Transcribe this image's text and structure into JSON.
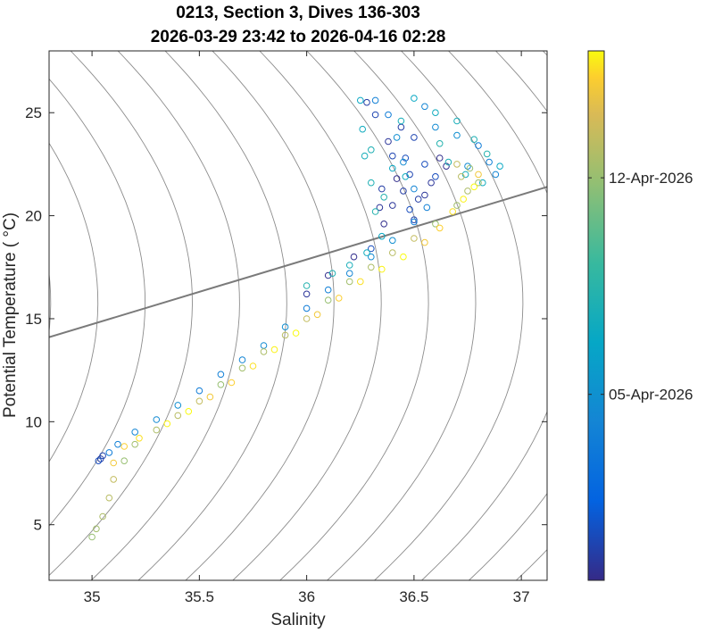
{
  "chart_data": {
    "type": "scatter",
    "title": "0213, Section 3, Dives 136-303",
    "subtitle": "2026-03-29 23:42 to 2026-04-16 02:28",
    "xlabel": "Salinity",
    "ylabel": "Potential Temperature ( °C)",
    "xlim": [
      34.8,
      37.12
    ],
    "ylim": [
      2.3,
      28.0
    ],
    "x_ticks": [
      35,
      35.5,
      36,
      36.5,
      37
    ],
    "x_tick_labels": [
      "35",
      "35.5",
      "36",
      "36.5",
      "37"
    ],
    "y_ticks": [
      5,
      10,
      15,
      20,
      25
    ],
    "y_tick_labels": [
      "5",
      "10",
      "15",
      "20",
      "25"
    ],
    "grid": false,
    "marker": "open-circle",
    "colormap": "parula",
    "color_variable": "time",
    "colorbar": {
      "range": [
        "2026-03-29 23:42",
        "2026-04-16 02:28"
      ],
      "tick_labels": [
        "05-Apr-2026",
        "12-Apr-2026"
      ],
      "tick_values": [
        "2026-04-05",
        "2026-04-12"
      ]
    },
    "density_contours": {
      "color": "#8c8c8c",
      "highlight": {
        "color": "#7a7a7a",
        "from": [
          34.8,
          14.1
        ],
        "to": [
          37.12,
          21.4
        ]
      }
    },
    "series": [
      {
        "phase": 0.05,
        "points": [
          [
            36.36,
            19.6
          ],
          [
            36.4,
            20.5
          ],
          [
            36.45,
            21.2
          ],
          [
            36.48,
            22.0
          ],
          [
            36.55,
            22.5
          ],
          [
            36.62,
            22.8
          ],
          [
            36.58,
            21.6
          ],
          [
            36.52,
            20.8
          ],
          [
            36.5,
            19.8
          ],
          [
            36.3,
            18.4
          ],
          [
            36.22,
            18.0
          ],
          [
            36.38,
            23.6
          ],
          [
            36.44,
            24.3
          ],
          [
            36.5,
            23.8
          ],
          [
            36.46,
            22.8
          ],
          [
            36.42,
            21.8
          ],
          [
            36.34,
            20.4
          ],
          [
            36.28,
            25.5
          ],
          [
            36.32,
            24.9
          ],
          [
            36.6,
            21.9
          ],
          [
            36.65,
            22.4
          ],
          [
            36.55,
            21.0
          ],
          [
            36.35,
            21.3
          ],
          [
            36.4,
            22.9
          ],
          [
            36.48,
            20.3
          ],
          [
            36.1,
            17.1
          ],
          [
            36.0,
            16.2
          ],
          [
            35.04,
            8.2
          ],
          [
            35.05,
            8.35
          ],
          [
            35.03,
            8.1
          ]
        ]
      },
      {
        "phase": 0.3,
        "points": [
          [
            35.08,
            8.5
          ],
          [
            35.12,
            8.9
          ],
          [
            35.2,
            9.5
          ],
          [
            35.3,
            10.1
          ],
          [
            35.4,
            10.8
          ],
          [
            35.5,
            11.5
          ],
          [
            35.6,
            12.3
          ],
          [
            35.7,
            13.0
          ],
          [
            35.8,
            13.7
          ],
          [
            35.9,
            14.6
          ],
          [
            36.0,
            15.5
          ],
          [
            36.1,
            16.4
          ],
          [
            36.2,
            17.2
          ],
          [
            36.3,
            18.0
          ],
          [
            36.4,
            18.8
          ],
          [
            36.5,
            19.7
          ],
          [
            36.56,
            20.4
          ],
          [
            36.5,
            21.3
          ],
          [
            36.45,
            22.6
          ],
          [
            36.42,
            23.8
          ],
          [
            36.38,
            24.9
          ],
          [
            36.32,
            25.6
          ],
          [
            36.55,
            25.3
          ],
          [
            36.6,
            24.3
          ],
          [
            36.7,
            23.9
          ],
          [
            36.8,
            23.4
          ],
          [
            36.85,
            22.6
          ],
          [
            36.88,
            22.0
          ],
          [
            36.75,
            22.4
          ]
        ]
      },
      {
        "phase": 0.5,
        "points": [
          [
            36.25,
            25.6
          ],
          [
            36.26,
            24.2
          ],
          [
            36.27,
            22.9
          ],
          [
            36.3,
            21.6
          ],
          [
            36.32,
            20.2
          ],
          [
            36.35,
            19.0
          ],
          [
            36.28,
            18.2
          ],
          [
            36.2,
            17.6
          ],
          [
            36.12,
            17.2
          ],
          [
            36.0,
            16.6
          ],
          [
            36.4,
            22.3
          ],
          [
            36.46,
            21.9
          ],
          [
            36.44,
            24.6
          ],
          [
            36.3,
            23.2
          ],
          [
            36.36,
            20.9
          ],
          [
            36.5,
            25.7
          ],
          [
            36.6,
            25.0
          ],
          [
            36.7,
            24.6
          ],
          [
            36.78,
            23.7
          ],
          [
            36.84,
            23.0
          ],
          [
            36.9,
            22.4
          ],
          [
            36.82,
            21.6
          ],
          [
            36.74,
            22.0
          ],
          [
            36.66,
            22.6
          ],
          [
            36.62,
            23.5
          ]
        ]
      },
      {
        "phase": 0.8,
        "points": [
          [
            35.0,
            4.4
          ],
          [
            35.02,
            4.8
          ],
          [
            35.05,
            5.4
          ],
          [
            35.08,
            6.3
          ],
          [
            35.1,
            7.2
          ],
          [
            35.15,
            8.1
          ],
          [
            35.2,
            8.9
          ],
          [
            35.3,
            9.6
          ],
          [
            35.4,
            10.3
          ],
          [
            35.5,
            11.0
          ],
          [
            35.6,
            11.8
          ],
          [
            35.7,
            12.6
          ],
          [
            35.8,
            13.4
          ],
          [
            35.9,
            14.2
          ],
          [
            36.0,
            15.0
          ],
          [
            36.1,
            15.9
          ],
          [
            36.2,
            16.8
          ],
          [
            36.3,
            17.5
          ],
          [
            36.4,
            18.2
          ],
          [
            36.5,
            18.9
          ],
          [
            36.6,
            19.6
          ],
          [
            36.7,
            20.5
          ],
          [
            36.75,
            21.2
          ],
          [
            36.72,
            21.9
          ],
          [
            36.7,
            22.5
          ],
          [
            36.76,
            22.3
          ],
          [
            36.8,
            21.6
          ]
        ]
      },
      {
        "phase": 0.97,
        "points": [
          [
            35.1,
            8.0
          ],
          [
            35.15,
            8.8
          ],
          [
            35.22,
            9.2
          ],
          [
            35.35,
            9.9
          ],
          [
            35.45,
            10.5
          ],
          [
            35.55,
            11.2
          ],
          [
            35.65,
            11.9
          ],
          [
            35.75,
            12.7
          ],
          [
            35.85,
            13.5
          ],
          [
            35.95,
            14.3
          ],
          [
            36.05,
            15.2
          ],
          [
            36.15,
            16.0
          ],
          [
            36.25,
            16.8
          ],
          [
            36.35,
            17.4
          ],
          [
            36.45,
            18.0
          ],
          [
            36.55,
            18.7
          ],
          [
            36.62,
            19.4
          ],
          [
            36.68,
            20.2
          ],
          [
            36.73,
            20.8
          ],
          [
            36.78,
            21.4
          ],
          [
            36.8,
            22.0
          ]
        ]
      }
    ]
  }
}
